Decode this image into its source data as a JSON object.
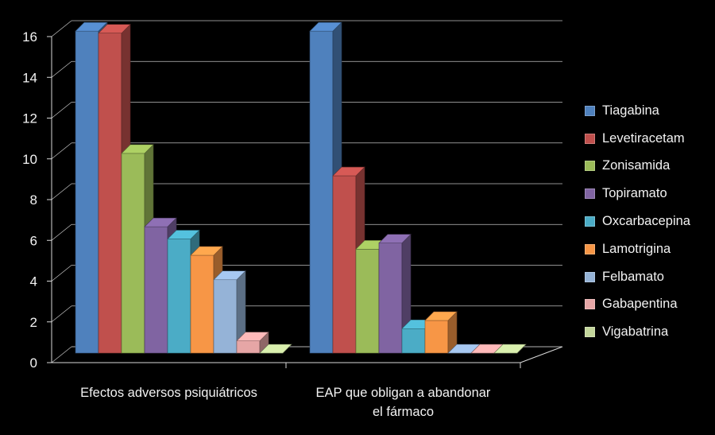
{
  "chart_data": {
    "type": "bar",
    "categories": [
      "Efectos adversos psiquiátricos",
      "EAP que obligan a abandonar el fármaco"
    ],
    "category_lines": [
      [
        "Efectos adversos psiquiátricos"
      ],
      [
        "EAP que obligan a abandonar",
        "el fármaco"
      ]
    ],
    "y_ticks": [
      "0",
      "2",
      "4",
      "6",
      "8",
      "10",
      "12",
      "14",
      "16"
    ],
    "ylim": [
      0,
      16
    ],
    "grid": true,
    "three_d": true,
    "legend_position": "right",
    "series": [
      {
        "name": "Tiagabina",
        "color": "#4f81bd",
        "values": [
          15.8,
          15.8
        ]
      },
      {
        "name": "Levetiracetam",
        "color": "#c0504d",
        "values": [
          15.7,
          8.7
        ]
      },
      {
        "name": "Zonisamida",
        "color": "#9bbb59",
        "values": [
          9.8,
          5.1
        ]
      },
      {
        "name": "Topiramato",
        "color": "#8064a2",
        "values": [
          6.2,
          5.4
        ]
      },
      {
        "name": "Oxcarbacepina",
        "color": "#4bacc6",
        "values": [
          5.6,
          1.2
        ]
      },
      {
        "name": "Lamotrigina",
        "color": "#f79646",
        "values": [
          4.8,
          1.6
        ]
      },
      {
        "name": "Felbamato",
        "color": "#95b3d7",
        "values": [
          3.6,
          0
        ]
      },
      {
        "name": "Gabapentina",
        "color": "#e6a6a6",
        "values": [
          0.6,
          0
        ]
      },
      {
        "name": "Vigabatrina",
        "color": "#c3d69b",
        "values": [
          0,
          0
        ]
      }
    ]
  }
}
